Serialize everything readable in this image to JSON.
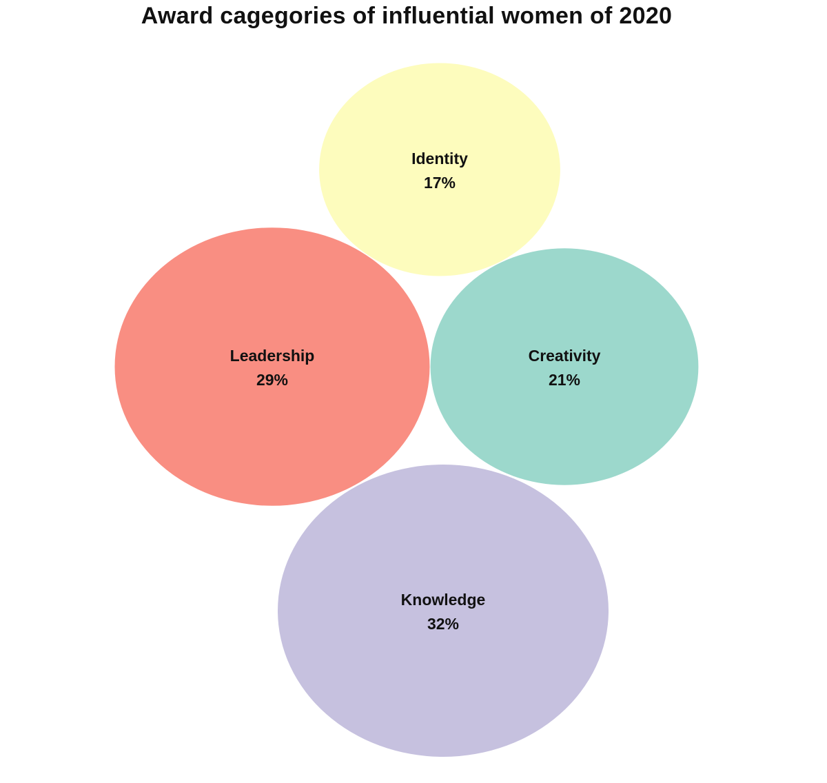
{
  "chart_data": {
    "type": "bubble",
    "title": "Award cagegories of influential women of 2020",
    "items": [
      {
        "label": "Identity",
        "value": 17,
        "value_label": "17%",
        "color": "#FDFCBD"
      },
      {
        "label": "Leadership",
        "value": 29,
        "value_label": "29%",
        "color": "#F98E82"
      },
      {
        "label": "Creativity",
        "value": 21,
        "value_label": "21%",
        "color": "#9CD8CC"
      },
      {
        "label": "Knowledge",
        "value": 32,
        "value_label": "32%",
        "color": "#C6C1DF"
      }
    ],
    "legend": "none",
    "grid": false
  }
}
